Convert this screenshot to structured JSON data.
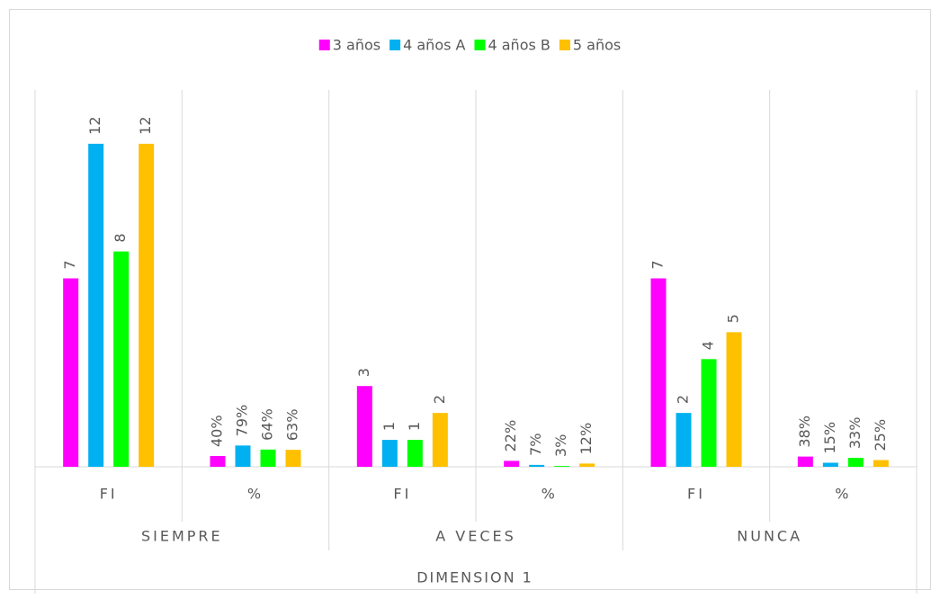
{
  "chart_data": {
    "type": "bar",
    "categories": [
      "FI",
      "%",
      "FI",
      "%",
      "FI",
      "%"
    ],
    "groups": [
      "SIEMPRE",
      "A VECES",
      "NUNCA"
    ],
    "xlabel": "DIMENSION 1",
    "ylim": [
      0,
      14
    ],
    "legend": "top",
    "series": [
      {
        "name": "3 años",
        "color": "#ff00ff",
        "values": [
          7,
          0.4,
          3,
          0.22,
          7,
          0.38
        ],
        "value_labels": [
          "7",
          "40%",
          "3",
          "22%",
          "7",
          "38%"
        ]
      },
      {
        "name": "4 años A",
        "color": "#00b0f0",
        "values": [
          12,
          0.79,
          1,
          0.07,
          2,
          0.15
        ],
        "value_labels": [
          "12",
          "79%",
          "1",
          "7%",
          "2",
          "15%"
        ]
      },
      {
        "name": "4 años B",
        "color": "#00ff00",
        "values": [
          8,
          0.64,
          1,
          0.03,
          4,
          0.33
        ],
        "value_labels": [
          "8",
          "64%",
          "1",
          "3%",
          "4",
          "33%"
        ]
      },
      {
        "name": "5 años",
        "color": "#ffc000",
        "values": [
          12,
          0.63,
          2,
          0.12,
          5,
          0.25
        ],
        "value_labels": [
          "12",
          "63%",
          "2",
          "12%",
          "5",
          "25%"
        ]
      }
    ]
  }
}
